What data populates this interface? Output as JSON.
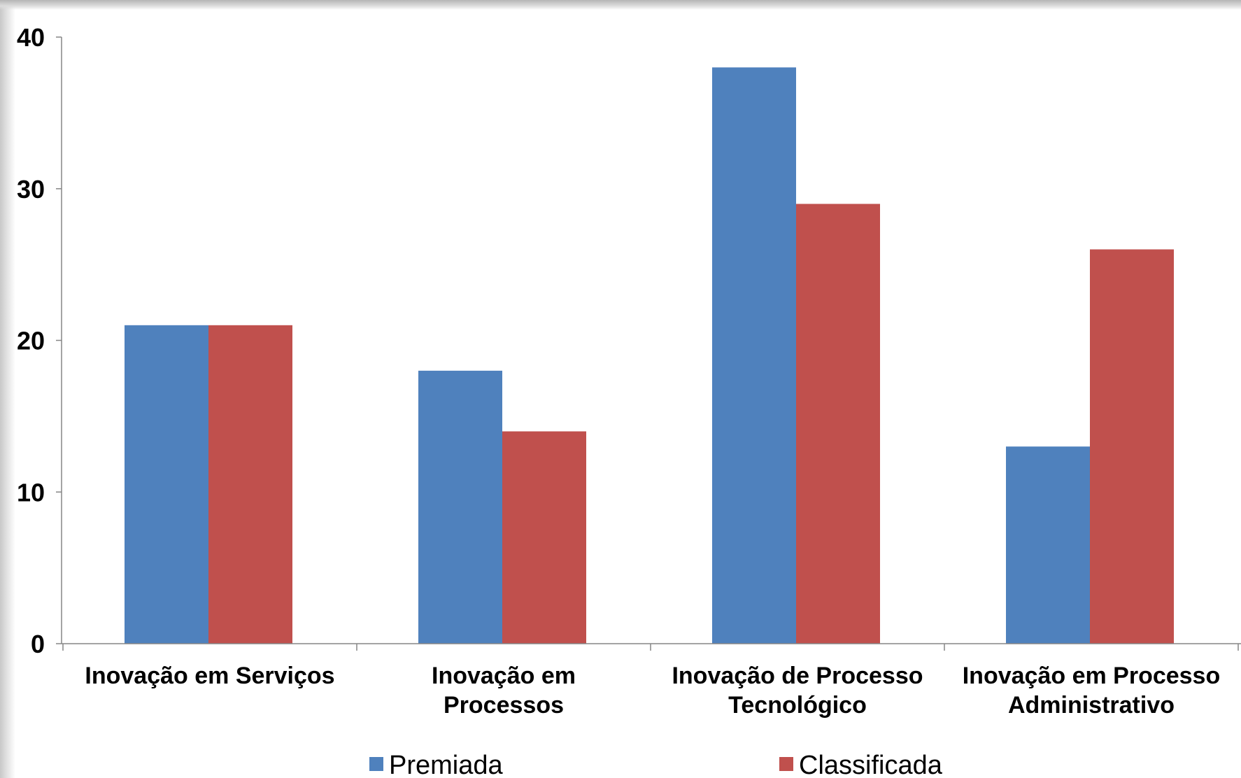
{
  "chart_data": {
    "type": "bar",
    "title": "",
    "xlabel": "",
    "ylabel": "",
    "categories": [
      [
        "Inovação em Serviços"
      ],
      [
        "Inovação em",
        "Processos"
      ],
      [
        "Inovação de Processo",
        "Tecnológico"
      ],
      [
        "Inovação em Processo",
        "Administrativo"
      ]
    ],
    "series": [
      {
        "name": "Premiada",
        "color": "#4F81BD",
        "values": [
          21,
          18,
          38,
          13
        ]
      },
      {
        "name": "Classificada",
        "color": "#C0504D",
        "values": [
          21,
          14,
          29,
          26
        ]
      }
    ],
    "ylim": [
      0,
      40
    ],
    "yticks": [
      "0",
      "10",
      "20",
      "30",
      "40"
    ],
    "grid": false,
    "legend_position": "bottom"
  }
}
